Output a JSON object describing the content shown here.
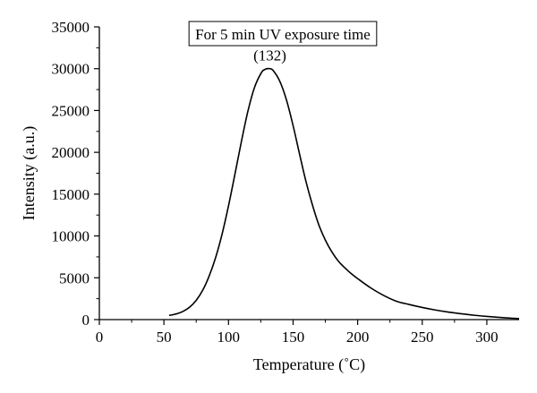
{
  "chart_data": {
    "type": "line",
    "title": "",
    "xlabel": "Temperature (˚C)",
    "ylabel": "Intensity (a.u.)",
    "xlim": [
      0,
      325
    ],
    "ylim": [
      0,
      35000
    ],
    "x_ticks": [
      0,
      50,
      100,
      150,
      200,
      250,
      300
    ],
    "y_ticks": [
      0,
      5000,
      10000,
      15000,
      20000,
      25000,
      30000,
      35000
    ],
    "grid": false,
    "legend_box_text": "For 5 min UV exposure time",
    "legend_placement": "top-center",
    "series": [
      {
        "color": "#000000",
        "x": [
          54,
          60,
          65,
          70,
          75,
          80,
          85,
          90,
          95,
          100,
          105,
          110,
          115,
          120,
          125,
          128,
          132,
          135,
          140,
          145,
          150,
          155,
          160,
          165,
          170,
          175,
          180,
          185,
          190,
          195,
          200,
          210,
          220,
          230,
          240,
          250,
          260,
          270,
          280,
          290,
          300,
          310,
          320,
          325
        ],
        "y": [
          500,
          700,
          1000,
          1500,
          2300,
          3500,
          5200,
          7400,
          10200,
          13600,
          17400,
          21300,
          24900,
          27700,
          29400,
          29900,
          30000,
          29700,
          28400,
          26200,
          23200,
          19800,
          16500,
          13700,
          11300,
          9500,
          8100,
          7000,
          6200,
          5500,
          4900,
          3800,
          2900,
          2200,
          1800,
          1450,
          1150,
          900,
          700,
          520,
          380,
          260,
          160,
          120
        ]
      }
    ],
    "annotations": [
      {
        "text": "(132)",
        "x": 132,
        "y": 30000
      }
    ]
  }
}
